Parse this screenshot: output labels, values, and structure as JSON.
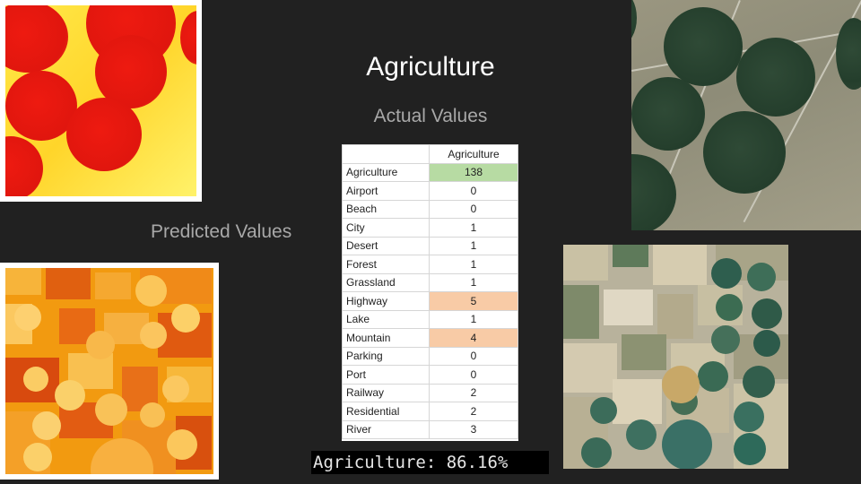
{
  "title": "Agriculture",
  "actual_label": "Actual Values",
  "predicted_label": "Predicted Values",
  "accuracy_text": "Agriculture: 86.16%",
  "table": {
    "column_header": "Agriculture",
    "rows": [
      {
        "name": "Agriculture",
        "value": "138",
        "highlight": "green"
      },
      {
        "name": "Airport",
        "value": "0",
        "highlight": ""
      },
      {
        "name": "Beach",
        "value": "0",
        "highlight": ""
      },
      {
        "name": "City",
        "value": "1",
        "highlight": ""
      },
      {
        "name": "Desert",
        "value": "1",
        "highlight": ""
      },
      {
        "name": "Forest",
        "value": "1",
        "highlight": ""
      },
      {
        "name": "Grassland",
        "value": "1",
        "highlight": ""
      },
      {
        "name": "Highway",
        "value": "5",
        "highlight": "orange"
      },
      {
        "name": "Lake",
        "value": "1",
        "highlight": ""
      },
      {
        "name": "Mountain",
        "value": "4",
        "highlight": "orange"
      },
      {
        "name": "Parking",
        "value": "0",
        "highlight": ""
      },
      {
        "name": "Port",
        "value": "0",
        "highlight": ""
      },
      {
        "name": "Railway",
        "value": "2",
        "highlight": ""
      },
      {
        "name": "Residential",
        "value": "2",
        "highlight": ""
      },
      {
        "name": "River",
        "value": "3",
        "highlight": ""
      }
    ]
  },
  "colors": {
    "background": "#212121",
    "highlight_green": "#b7dba3",
    "highlight_orange": "#f8cba6"
  }
}
